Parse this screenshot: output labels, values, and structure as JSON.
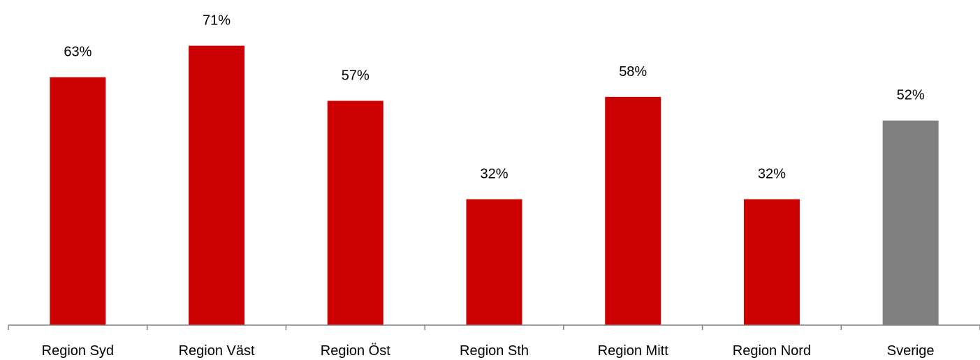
{
  "chart_data": {
    "type": "bar",
    "categories": [
      "Region Syd",
      "Region Väst",
      "Region Öst",
      "Region Sth",
      "Region Mitt",
      "Region Nord",
      "Sverige"
    ],
    "values": [
      63,
      71,
      57,
      32,
      58,
      32,
      52
    ],
    "data_labels": [
      "63%",
      "71%",
      "57%",
      "32%",
      "58%",
      "32%",
      "52%"
    ],
    "bar_colors": [
      "#cc0000",
      "#cc0000",
      "#cc0000",
      "#cc0000",
      "#cc0000",
      "#cc0000",
      "#808080"
    ],
    "title": "",
    "xlabel": "",
    "ylabel": "",
    "ylim": [
      0,
      75
    ],
    "grid": false,
    "legend": "none"
  }
}
